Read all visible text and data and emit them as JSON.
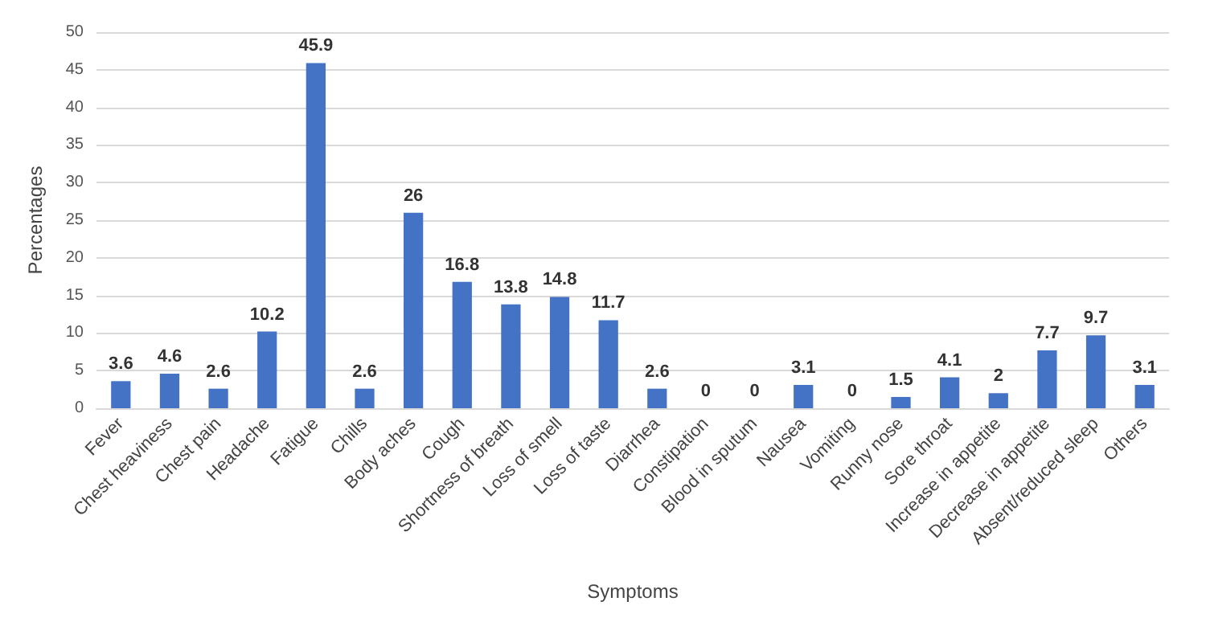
{
  "chart_data": {
    "type": "bar",
    "xlabel": "Symptoms",
    "ylabel": "Percentages",
    "categories": [
      "Fever",
      "Chest heaviness",
      "Chest pain",
      "Headache",
      "Fatigue",
      "Chills",
      "Body aches",
      "Cough",
      "Shortness of breath",
      "Loss of smell",
      "Loss of taste",
      "Diarrhea",
      "Constipation",
      "Blood in sputum",
      "Nausea",
      "Vomiting",
      "Runny nose",
      "Sore throat",
      "Increase in appetite",
      "Decrease in appetite",
      "Absent/reduced sleep",
      "Others"
    ],
    "values": [
      3.6,
      4.6,
      2.6,
      10.2,
      45.9,
      2.6,
      26,
      16.8,
      13.8,
      14.8,
      11.7,
      2.6,
      0,
      0,
      3.1,
      0,
      1.5,
      4.1,
      2,
      7.7,
      9.7,
      3.1
    ],
    "color": "#4472c4",
    "ylim": [
      0,
      50
    ],
    "yticks": [
      0,
      5,
      10,
      15,
      20,
      25,
      30,
      35,
      40,
      45,
      50
    ],
    "grid": "y",
    "data_labels": true
  }
}
